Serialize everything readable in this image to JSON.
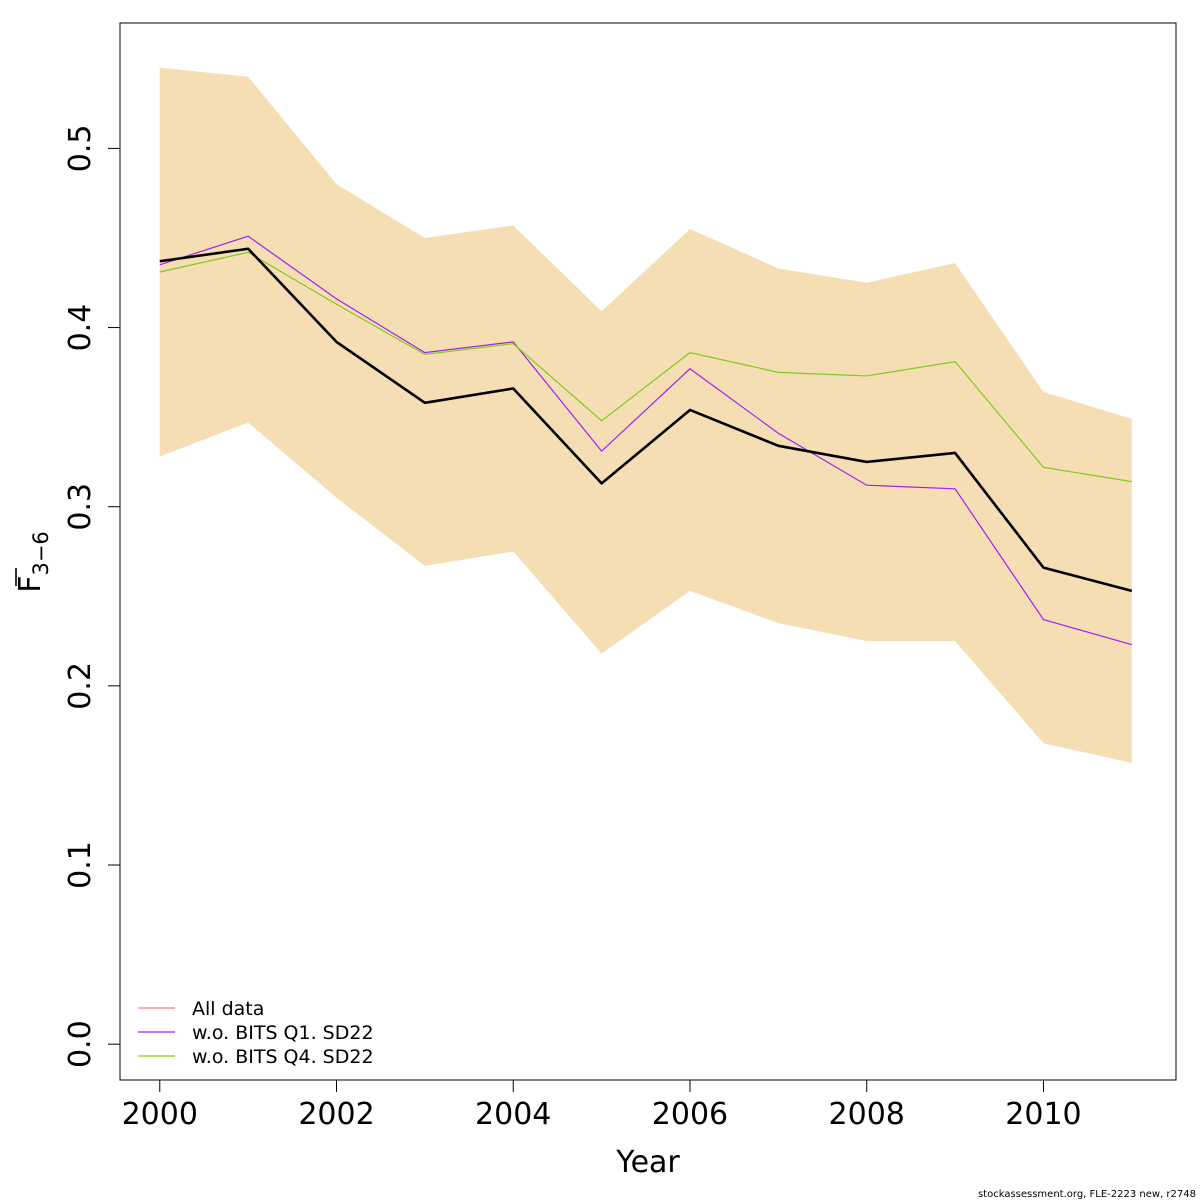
{
  "chart_data": {
    "type": "line",
    "xlabel": "Year",
    "ylabel_main": "F",
    "ylabel_sub": "3−6",
    "xlim": [
      1999.55,
      2011.5
    ],
    "ylim": [
      -0.02,
      0.57
    ],
    "x_ticks": [
      2000,
      2002,
      2004,
      2006,
      2008,
      2010
    ],
    "y_ticks": [
      0.0,
      0.1,
      0.2,
      0.3,
      0.4,
      0.5
    ],
    "x_tick_labels": [
      "2000",
      "2002",
      "2004",
      "2006",
      "2008",
      "2010"
    ],
    "y_tick_labels": [
      "0.0",
      "0.1",
      "0.2",
      "0.3",
      "0.4",
      "0.5"
    ],
    "x": [
      2000,
      2001,
      2002,
      2003,
      2004,
      2005,
      2006,
      2007,
      2008,
      2009,
      2010,
      2011
    ],
    "band": {
      "color": "#f5deb3",
      "upper": [
        0.545,
        0.54,
        0.48,
        0.45,
        0.457,
        0.409,
        0.455,
        0.433,
        0.425,
        0.436,
        0.364,
        0.349
      ],
      "lower": [
        0.328,
        0.347,
        0.305,
        0.267,
        0.275,
        0.218,
        0.253,
        0.235,
        0.225,
        0.225,
        0.168,
        0.157
      ]
    },
    "main_line": {
      "color": "#000000",
      "values": [
        0.437,
        0.444,
        0.392,
        0.358,
        0.366,
        0.313,
        0.354,
        0.334,
        0.325,
        0.33,
        0.266,
        0.253
      ]
    },
    "series": [
      {
        "name": "All data",
        "color": "#f08080",
        "values": null
      },
      {
        "name": "w.o. BITS Q1. SD22",
        "color": "#a020f0",
        "values": [
          0.435,
          0.451,
          0.416,
          0.386,
          0.392,
          0.331,
          0.377,
          0.341,
          0.312,
          0.31,
          0.237,
          0.223
        ]
      },
      {
        "name": "w.o. BITS Q4. SD22",
        "color": "#7fcc19",
        "values": [
          0.431,
          0.442,
          0.413,
          0.385,
          0.391,
          0.348,
          0.386,
          0.375,
          0.373,
          0.381,
          0.322,
          0.314
        ]
      }
    ],
    "legend_position": "bottom-left",
    "grid": false
  },
  "footer": "stockassessment.org, FLE-2223 new, r2748"
}
